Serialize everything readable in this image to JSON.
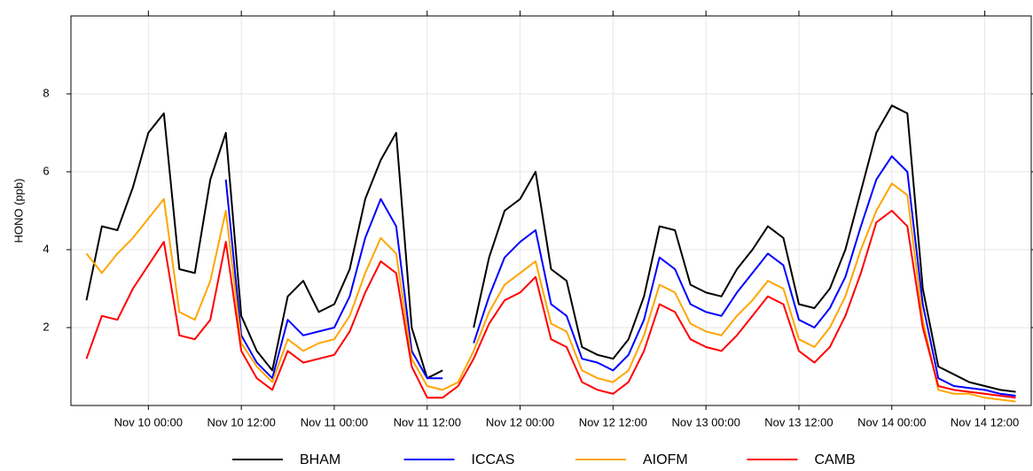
{
  "chart_data": {
    "type": "line",
    "ylabel": "HONO (ppb)",
    "x": [
      "Nov 9 16:00",
      "Nov 9 18:00",
      "Nov 9 20:00",
      "Nov 9 22:00",
      "Nov 10 00:00",
      "Nov 10 02:00",
      "Nov 10 04:00",
      "Nov 10 06:00",
      "Nov 10 08:00",
      "Nov 10 10:00",
      "Nov 10 12:00",
      "Nov 10 14:00",
      "Nov 10 16:00",
      "Nov 10 18:00",
      "Nov 10 20:00",
      "Nov 10 22:00",
      "Nov 11 00:00",
      "Nov 11 02:00",
      "Nov 11 04:00",
      "Nov 11 06:00",
      "Nov 11 08:00",
      "Nov 11 10:00",
      "Nov 11 12:00",
      "Nov 11 14:00",
      "Nov 11 16:00",
      "Nov 11 18:00",
      "Nov 11 20:00",
      "Nov 11 22:00",
      "Nov 12 00:00",
      "Nov 12 02:00",
      "Nov 12 04:00",
      "Nov 12 06:00",
      "Nov 12 08:00",
      "Nov 12 10:00",
      "Nov 12 12:00",
      "Nov 12 14:00",
      "Nov 12 16:00",
      "Nov 12 18:00",
      "Nov 12 20:00",
      "Nov 12 22:00",
      "Nov 13 00:00",
      "Nov 13 02:00",
      "Nov 13 04:00",
      "Nov 13 06:00",
      "Nov 13 08:00",
      "Nov 13 10:00",
      "Nov 13 12:00",
      "Nov 13 14:00",
      "Nov 13 16:00",
      "Nov 13 18:00",
      "Nov 13 20:00",
      "Nov 13 22:00",
      "Nov 14 00:00",
      "Nov 14 02:00",
      "Nov 14 04:00",
      "Nov 14 06:00",
      "Nov 14 08:00",
      "Nov 14 10:00",
      "Nov 14 12:00",
      "Nov 14 14:00",
      "Nov 14 16:00"
    ],
    "series": [
      {
        "name": "BHAM",
        "color": "#000000",
        "values": [
          2.7,
          4.6,
          4.5,
          5.6,
          7.0,
          7.5,
          3.5,
          3.4,
          5.8,
          7.0,
          2.3,
          1.4,
          0.9,
          2.8,
          3.2,
          2.4,
          2.6,
          3.5,
          5.3,
          6.3,
          7.0,
          2.0,
          0.7,
          0.9,
          null,
          2.0,
          3.8,
          5.0,
          5.3,
          6.0,
          3.5,
          3.2,
          1.5,
          1.3,
          1.2,
          1.7,
          2.8,
          4.6,
          4.5,
          3.1,
          2.9,
          2.8,
          3.5,
          4.0,
          4.6,
          4.3,
          2.6,
          2.5,
          3.0,
          4.0,
          5.5,
          7.0,
          7.7,
          7.5,
          3.0,
          1.0,
          0.8,
          0.6,
          0.5,
          0.4,
          0.35
        ]
      },
      {
        "name": "ICCAS",
        "color": "#0000ff",
        "values": [
          null,
          null,
          null,
          null,
          null,
          null,
          null,
          null,
          null,
          5.8,
          1.8,
          1.1,
          0.7,
          2.2,
          1.8,
          1.9,
          2.0,
          2.8,
          4.3,
          5.3,
          4.6,
          1.4,
          0.7,
          0.7,
          null,
          1.6,
          2.8,
          3.8,
          4.2,
          4.5,
          2.6,
          2.3,
          1.2,
          1.1,
          0.9,
          1.3,
          2.2,
          3.8,
          3.5,
          2.6,
          2.4,
          2.3,
          2.9,
          3.4,
          3.9,
          3.6,
          2.2,
          2.0,
          2.5,
          3.3,
          4.6,
          5.8,
          6.4,
          6.0,
          2.6,
          0.7,
          0.5,
          0.45,
          0.4,
          0.3,
          0.25
        ]
      },
      {
        "name": "AIOFM",
        "color": "#ffa500",
        "values": [
          3.9,
          3.4,
          3.9,
          4.3,
          4.8,
          5.3,
          2.4,
          2.2,
          3.2,
          5.0,
          1.6,
          1.0,
          0.6,
          1.7,
          1.4,
          1.6,
          1.7,
          2.3,
          3.4,
          4.3,
          3.9,
          1.2,
          0.5,
          0.4,
          0.6,
          1.4,
          2.4,
          3.1,
          3.4,
          3.7,
          2.1,
          1.9,
          0.9,
          0.7,
          0.6,
          0.9,
          1.8,
          3.1,
          2.9,
          2.1,
          1.9,
          1.8,
          2.3,
          2.7,
          3.2,
          3.0,
          1.7,
          1.5,
          2.0,
          2.8,
          4.0,
          5.0,
          5.7,
          5.4,
          2.2,
          0.4,
          0.3,
          0.3,
          0.2,
          0.15,
          0.1
        ]
      },
      {
        "name": "CAMB",
        "color": "#ff0000",
        "values": [
          1.2,
          2.3,
          2.2,
          3.0,
          3.6,
          4.2,
          1.8,
          1.7,
          2.2,
          4.2,
          1.4,
          0.7,
          0.4,
          1.4,
          1.1,
          1.2,
          1.3,
          1.9,
          2.9,
          3.7,
          3.4,
          1.0,
          0.2,
          0.2,
          0.5,
          1.2,
          2.1,
          2.7,
          2.9,
          3.3,
          1.7,
          1.5,
          0.6,
          0.4,
          0.3,
          0.6,
          1.4,
          2.6,
          2.4,
          1.7,
          1.5,
          1.4,
          1.8,
          2.3,
          2.8,
          2.6,
          1.4,
          1.1,
          1.5,
          2.3,
          3.4,
          4.7,
          5.0,
          4.6,
          2.0,
          0.5,
          0.4,
          0.35,
          0.3,
          0.25,
          0.2
        ]
      }
    ],
    "xlim": [
      "Nov 9 14:00",
      "Nov 14 18:00"
    ],
    "xticks": [
      "Nov 10 00:00",
      "Nov 10 12:00",
      "Nov 11 00:00",
      "Nov 11 12:00",
      "Nov 12 00:00",
      "Nov 12 12:00",
      "Nov 13 00:00",
      "Nov 13 12:00",
      "Nov 14 00:00",
      "Nov 14 12:00"
    ],
    "ylim": [
      0,
      10
    ],
    "yticks": [
      2,
      4,
      6,
      8
    ],
    "grid": true,
    "legend": "bottom"
  }
}
